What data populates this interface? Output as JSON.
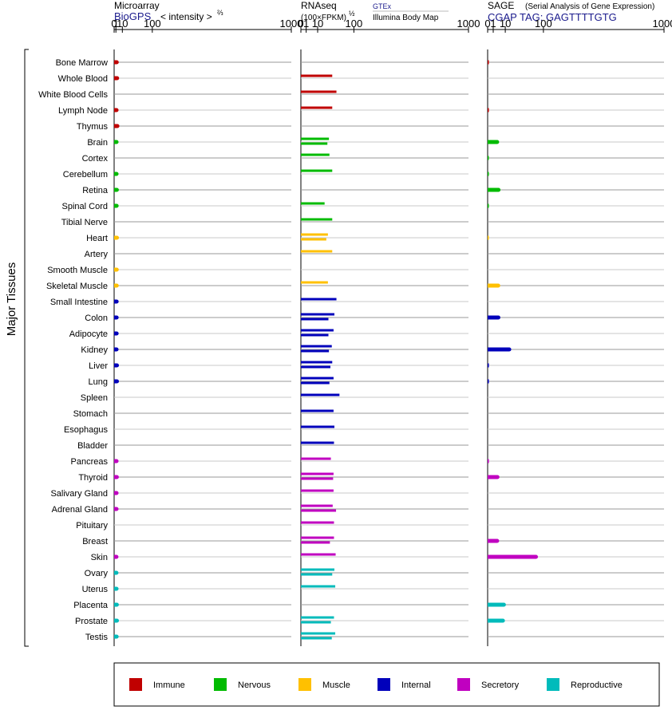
{
  "header": {
    "microarray": {
      "title": "Microarray",
      "source": "BioGPS",
      "intensity_label": "< intensity >",
      "exponent": "⅔"
    },
    "rnaseq": {
      "title": "RNAseq",
      "subtitle": "(100×FPKM)",
      "exponent": "½",
      "source1": "GTEx",
      "source2": "Illumina Body Map"
    },
    "sage": {
      "title": "SAGE",
      "subtitle": "(Serial Analysis of Gene Expression)",
      "tag_label": "CGAP TAG: GAGTTTTGTG"
    }
  },
  "axis_label": "Major Tissues",
  "colors": {
    "Immune": "#c00000",
    "Nervous": "#00bb00",
    "Muscle": "#ffc000",
    "Internal": "#0000bb",
    "Secretory": "#c000c0",
    "Reproductive": "#00bbbb"
  },
  "legend": [
    {
      "label": "Immune",
      "key": "Immune"
    },
    {
      "label": "Nervous",
      "key": "Nervous"
    },
    {
      "label": "Muscle",
      "key": "Muscle"
    },
    {
      "label": "Internal",
      "key": "Internal"
    },
    {
      "label": "Secretory",
      "key": "Secretory"
    },
    {
      "label": "Reproductive",
      "key": "Reproductive"
    }
  ],
  "chart_data": {
    "type": "bar",
    "tick_labels": [
      "0",
      "1",
      "10",
      "100",
      "1000"
    ],
    "tick_values": [
      0,
      1,
      10,
      100,
      1000
    ],
    "xlim": [
      0,
      1000
    ],
    "tissues": [
      {
        "name": "Bone Marrow",
        "group": "Immune",
        "microarray": 1.8,
        "gtex": null,
        "ibm": null,
        "sage": 0.05
      },
      {
        "name": "Whole Blood",
        "group": "Immune",
        "microarray": 2.2,
        "gtex": null,
        "ibm": 35,
        "sage": null
      },
      {
        "name": "White Blood Cells",
        "group": "Immune",
        "microarray": null,
        "gtex": null,
        "ibm": 45,
        "sage": null
      },
      {
        "name": "Lymph Node",
        "group": "Immune",
        "microarray": 1.6,
        "gtex": null,
        "ibm": 35,
        "sage": 0.05
      },
      {
        "name": "Thymus",
        "group": "Immune",
        "microarray": 2.5,
        "gtex": null,
        "ibm": null,
        "sage": null
      },
      {
        "name": "Brain",
        "group": "Nervous",
        "microarray": 1.6,
        "gtex": 28,
        "ibm": 25,
        "sage": 2.9
      },
      {
        "name": "Cortex",
        "group": "Nervous",
        "microarray": null,
        "gtex": 29,
        "ibm": null,
        "sage": 0.03
      },
      {
        "name": "Cerebellum",
        "group": "Nervous",
        "microarray": 1.6,
        "gtex": 35,
        "ibm": null,
        "sage": 0.03
      },
      {
        "name": "Retina",
        "group": "Nervous",
        "microarray": 1.9,
        "gtex": null,
        "ibm": null,
        "sage": 3.8
      },
      {
        "name": "Spinal Cord",
        "group": "Nervous",
        "microarray": 1.7,
        "gtex": null,
        "ibm": 20,
        "sage": 0.03
      },
      {
        "name": "Tibial Nerve",
        "group": "Nervous",
        "microarray": null,
        "gtex": null,
        "ibm": 35,
        "sage": null
      },
      {
        "name": "Heart",
        "group": "Muscle",
        "microarray": 2.0,
        "gtex": 26,
        "ibm": 23,
        "sage": 0.01
      },
      {
        "name": "Artery",
        "group": "Muscle",
        "microarray": null,
        "gtex": null,
        "ibm": 35,
        "sage": null
      },
      {
        "name": "Smooth Muscle",
        "group": "Muscle",
        "microarray": 1.8,
        "gtex": null,
        "ibm": null,
        "sage": null
      },
      {
        "name": "Skeletal Muscle",
        "group": "Muscle",
        "microarray": 1.8,
        "gtex": 26,
        "ibm": null,
        "sage": 3.6
      },
      {
        "name": "Small Intestine",
        "group": "Internal",
        "microarray": 1.7,
        "gtex": null,
        "ibm": 45,
        "sage": null
      },
      {
        "name": "Colon",
        "group": "Internal",
        "microarray": 1.7,
        "gtex": 40,
        "ibm": 27,
        "sage": 3.7
      },
      {
        "name": "Adipocyte",
        "group": "Internal",
        "microarray": 1.7,
        "gtex": 38,
        "ibm": 27,
        "sage": null
      },
      {
        "name": "Kidney",
        "group": "Internal",
        "microarray": 1.6,
        "gtex": 34,
        "ibm": 28,
        "sage": 15
      },
      {
        "name": "Liver",
        "group": "Internal",
        "microarray": 2.0,
        "gtex": 35,
        "ibm": 31,
        "sage": 0.05
      },
      {
        "name": "Lung",
        "group": "Internal",
        "microarray": 2.0,
        "gtex": 38,
        "ibm": 29,
        "sage": 0.05
      },
      {
        "name": "Spleen",
        "group": "Internal",
        "microarray": null,
        "gtex": null,
        "ibm": 53,
        "sage": null
      },
      {
        "name": "Stomach",
        "group": "Internal",
        "microarray": null,
        "gtex": null,
        "ibm": 38,
        "sage": null
      },
      {
        "name": "Esophagus",
        "group": "Internal",
        "microarray": null,
        "gtex": null,
        "ibm": 40,
        "sage": null
      },
      {
        "name": "Bladder",
        "group": "Internal",
        "microarray": null,
        "gtex": null,
        "ibm": 39,
        "sage": null
      },
      {
        "name": "Pancreas",
        "group": "Secretory",
        "microarray": 1.6,
        "gtex": null,
        "ibm": 32,
        "sage": 0.05
      },
      {
        "name": "Thyroid",
        "group": "Secretory",
        "microarray": 1.9,
        "gtex": 38,
        "ibm": 37,
        "sage": 3.1
      },
      {
        "name": "Salivary Gland",
        "group": "Secretory",
        "microarray": 1.6,
        "gtex": null,
        "ibm": 38,
        "sage": null
      },
      {
        "name": "Adrenal Gland",
        "group": "Secretory",
        "microarray": 1.6,
        "gtex": 36,
        "ibm": 44,
        "sage": null
      },
      {
        "name": "Pituitary",
        "group": "Secretory",
        "microarray": null,
        "gtex": null,
        "ibm": 39,
        "sage": null
      },
      {
        "name": "Breast",
        "group": "Secretory",
        "microarray": null,
        "gtex": 39,
        "ibm": 30,
        "sage": 2.9
      },
      {
        "name": "Skin",
        "group": "Secretory",
        "microarray": 1.5,
        "gtex": null,
        "ibm": 43,
        "sage": 75
      },
      {
        "name": "Ovary",
        "group": "Reproductive",
        "microarray": 1.5,
        "gtex": 40,
        "ibm": 35,
        "sage": null
      },
      {
        "name": "Uterus",
        "group": "Reproductive",
        "microarray": 1.6,
        "gtex": null,
        "ibm": 42,
        "sage": null
      },
      {
        "name": "Placenta",
        "group": "Reproductive",
        "microarray": 1.9,
        "gtex": null,
        "ibm": null,
        "sage": 8.5
      },
      {
        "name": "Prostate",
        "group": "Reproductive",
        "microarray": 2.0,
        "gtex": 39,
        "ibm": 32,
        "sage": 7.5
      },
      {
        "name": "Testis",
        "group": "Reproductive",
        "microarray": 1.7,
        "gtex": 42,
        "ibm": 34,
        "sage": null
      }
    ]
  }
}
